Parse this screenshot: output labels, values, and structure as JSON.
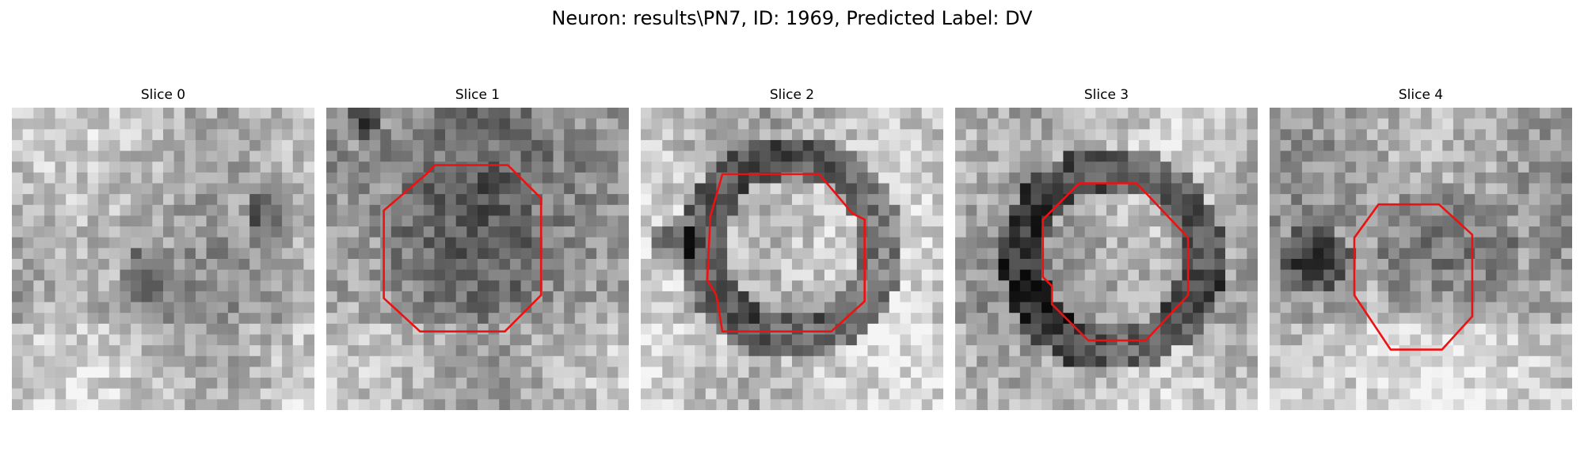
{
  "figure": {
    "title": "Neuron: results\\PN7, ID: 1969, Predicted Label: DV"
  },
  "panels": [
    {
      "title": "Slice 0",
      "contour": false,
      "darkring": false,
      "spot": true
    },
    {
      "title": "Slice 1",
      "contour": true,
      "darkring": false,
      "spot": false
    },
    {
      "title": "Slice 2",
      "contour": true,
      "darkring": true,
      "spot": false
    },
    {
      "title": "Slice 3",
      "contour": true,
      "darkring": true,
      "spot": false
    },
    {
      "title": "Slice 4",
      "contour": true,
      "darkring": false,
      "spot": false
    }
  ],
  "colors": {
    "contour": "#ee1111",
    "background": "#ffffff"
  }
}
